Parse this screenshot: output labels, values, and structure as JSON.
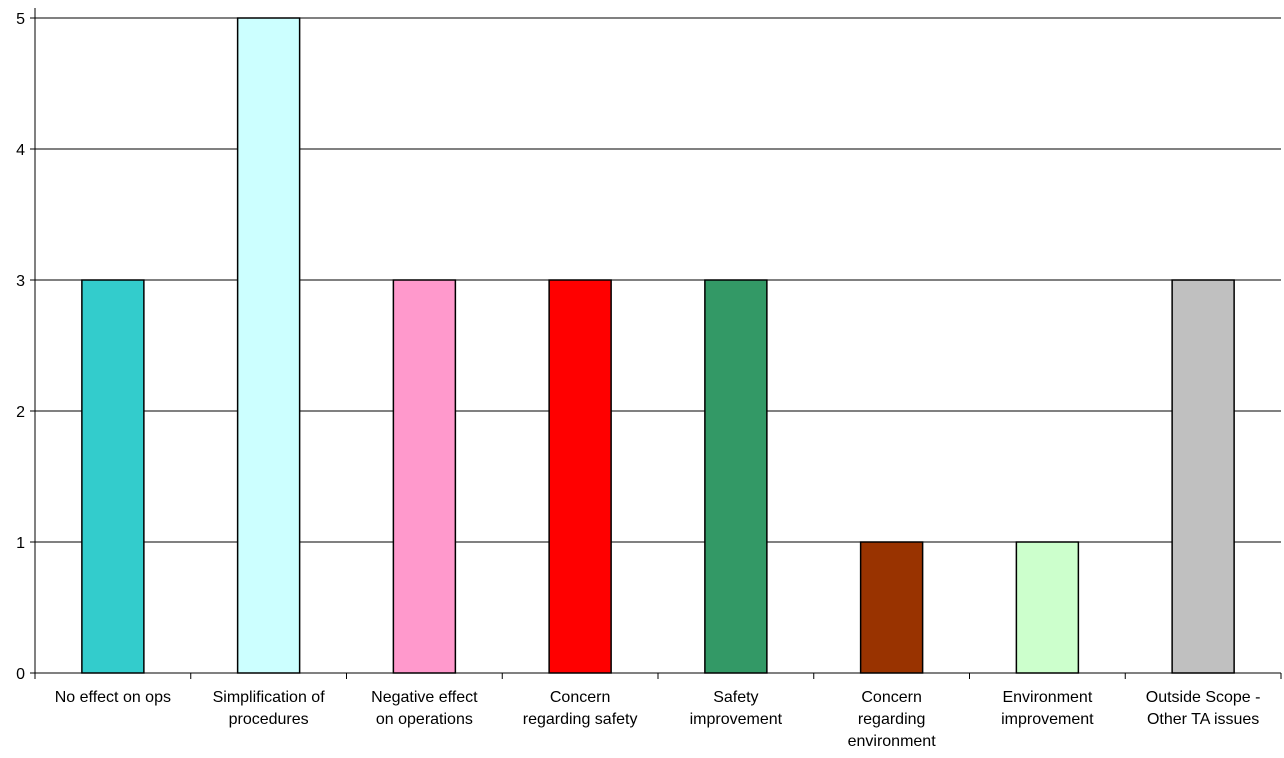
{
  "chart_data": {
    "type": "bar",
    "title": "",
    "xlabel": "",
    "ylabel": "",
    "ylim": [
      0,
      5
    ],
    "yticks": [
      "0",
      "1",
      "2",
      "3",
      "4",
      "5"
    ],
    "grid": true,
    "legend": "none",
    "categories": [
      [
        "No effect on ops"
      ],
      [
        "Simplification of",
        "procedures"
      ],
      [
        "Negative effect",
        "on operations"
      ],
      [
        "Concern",
        "regarding safety"
      ],
      [
        "Safety",
        "improvement"
      ],
      [
        "Concern",
        "regarding",
        "environment"
      ],
      [
        "Environment",
        "improvement"
      ],
      [
        "Outside Scope -",
        "Other TA issues"
      ]
    ],
    "values": [
      3,
      5,
      3,
      3,
      3,
      1,
      1,
      3
    ],
    "colors": [
      "#33CCCC",
      "#CCFFFF",
      "#FF99CC",
      "#FF0000",
      "#339966",
      "#993300",
      "#CCFFCC",
      "#C0C0C0"
    ]
  }
}
